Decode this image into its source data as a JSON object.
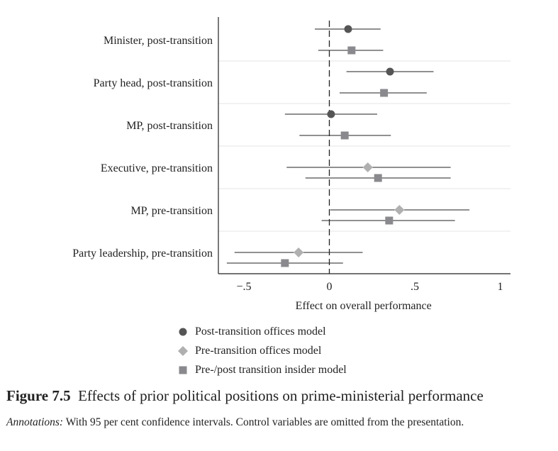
{
  "chart_data": {
    "type": "scatter",
    "subtype": "coefficient-plot",
    "title": "Effects of prior political positions on prime-ministerial performance",
    "xlabel": "Effect on overall performance",
    "ylabel": "",
    "xlim": [
      -0.65,
      1.06
    ],
    "xticks": [
      {
        "v": -0.5,
        "label": "−.5"
      },
      {
        "v": 0,
        "label": "0"
      },
      {
        "v": 0.5,
        "label": ".5"
      },
      {
        "v": 1,
        "label": "1"
      }
    ],
    "reference_line": 0,
    "grid": "horizontal separators between categories",
    "categories": [
      "Minister, post-transition",
      "Party head, post-transition",
      "MP, post-transition",
      "Executive, pre-transition",
      "MP, pre-transition",
      "Party leadership, pre-transition"
    ],
    "series": [
      {
        "name": "Post-transition offices model",
        "marker": "circle",
        "color": "#555555",
        "points": [
          {
            "category": 0,
            "est": 0.11,
            "lo": -0.085,
            "hi": 0.3
          },
          {
            "category": 1,
            "est": 0.355,
            "lo": 0.1,
            "hi": 0.61
          },
          {
            "category": 2,
            "est": 0.01,
            "lo": -0.26,
            "hi": 0.28
          }
        ]
      },
      {
        "name": "Pre-transition offices model",
        "marker": "diamond",
        "color": "#b0b0b0",
        "points": [
          {
            "category": 3,
            "est": 0.225,
            "lo": -0.25,
            "hi": 0.71
          },
          {
            "category": 4,
            "est": 0.41,
            "lo": 0.005,
            "hi": 0.82
          },
          {
            "category": 5,
            "est": -0.18,
            "lo": -0.555,
            "hi": 0.195
          }
        ]
      },
      {
        "name": "Pre-/post transition insider model",
        "marker": "square",
        "color": "#8a8a8e",
        "points": [
          {
            "category": 0,
            "est": 0.13,
            "lo": -0.065,
            "hi": 0.315
          },
          {
            "category": 1,
            "est": 0.32,
            "lo": 0.06,
            "hi": 0.57
          },
          {
            "category": 2,
            "est": 0.09,
            "lo": -0.175,
            "hi": 0.36
          },
          {
            "category": 3,
            "est": 0.285,
            "lo": -0.14,
            "hi": 0.71
          },
          {
            "category": 4,
            "est": 0.35,
            "lo": -0.045,
            "hi": 0.735
          },
          {
            "category": 5,
            "est": -0.26,
            "lo": -0.6,
            "hi": 0.08
          }
        ]
      }
    ],
    "legend_position": "bottom"
  },
  "caption": {
    "figure_label": "Figure 7.5",
    "text": "Effects of prior political positions on prime-ministerial performance"
  },
  "note": {
    "label": "Annotations:",
    "text": "With 95 per cent confidence intervals. Control variables are omitted from the presentation."
  }
}
